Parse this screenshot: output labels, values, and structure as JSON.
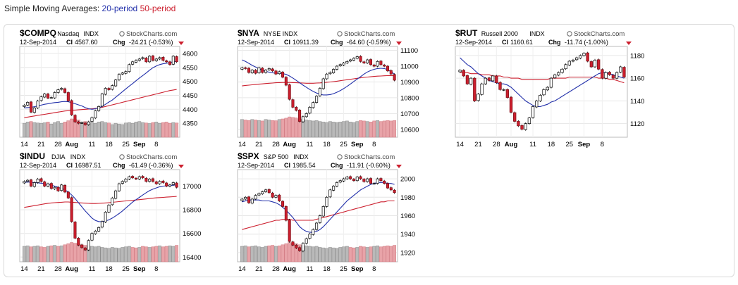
{
  "header": {
    "title": "Simple Moving Averages:",
    "ma20_label": "20-period",
    "ma50_label": "50-period",
    "ma20_color": "#2230aa",
    "ma50_color": "#cc1f2e"
  },
  "chart_data": [
    {
      "type": "candlestick",
      "symbol": "$COMPQ",
      "name": "Nasdaq",
      "exchange": "INDX",
      "watermark": "StockCharts.com",
      "date": "12-Sep-2014",
      "cl_label": "Cl",
      "close": "4567.60",
      "chg_label": "Chg",
      "chg": "-24.21 (-0.53%)",
      "ylim": [
        4300,
        4625
      ],
      "yticks": [
        "4600",
        "4550",
        "4500",
        "4450",
        "4400",
        "4350"
      ],
      "xticks": [
        "14",
        "21",
        "28",
        "Aug",
        "11",
        "18",
        "25",
        "Sep",
        "8"
      ],
      "xtick_pos": [
        0,
        5,
        10,
        14,
        20,
        25,
        30,
        34,
        39
      ],
      "closes": [
        4415,
        4425,
        4390,
        4405,
        4430,
        4445,
        4455,
        4440,
        4442,
        4460,
        4470,
        4475,
        4460,
        4430,
        4380,
        4355,
        4350,
        4352,
        4345,
        4355,
        4370,
        4395,
        4410,
        4455,
        4475,
        4470,
        4485,
        4505,
        4525,
        4530,
        4535,
        4560,
        4570,
        4575,
        4580,
        4585,
        4570,
        4590,
        4575,
        4580,
        4585,
        4575,
        4570,
        4560,
        4590,
        4570
      ],
      "ma20": [
        4405,
        4406,
        4407,
        4409,
        4412,
        4415,
        4418,
        4420,
        4422,
        4424,
        4425,
        4427,
        4428,
        4427,
        4424,
        4420,
        4416,
        4412,
        4406,
        4402,
        4400,
        4402,
        4405,
        4410,
        4418,
        4426,
        4433,
        4443,
        4453,
        4463,
        4473,
        4483,
        4492,
        4502,
        4512,
        4521,
        4530,
        4540,
        4549,
        4555,
        4560,
        4563,
        4565,
        4567,
        4570,
        4571
      ],
      "ma50": [
        4370,
        4372,
        4374,
        4376,
        4378,
        4380,
        4382,
        4384,
        4386,
        4388,
        4390,
        4392,
        4394,
        4395,
        4396,
        4397,
        4398,
        4399,
        4400,
        4401,
        4402,
        4403,
        4405,
        4407,
        4410,
        4413,
        4416,
        4419,
        4422,
        4425,
        4428,
        4431,
        4434,
        4437,
        4440,
        4443,
        4446,
        4449,
        4452,
        4455,
        4458,
        4461,
        4464,
        4467,
        4469,
        4471
      ],
      "volume": [
        0.55,
        0.6,
        0.62,
        0.58,
        0.56,
        0.55,
        0.57,
        0.6,
        0.52,
        0.58,
        0.62,
        0.55,
        0.6,
        0.65,
        0.72,
        0.7,
        0.68,
        0.6,
        0.62,
        0.6,
        0.58,
        0.55,
        0.6,
        0.62,
        0.58,
        0.56,
        0.5,
        0.55,
        0.52,
        0.5,
        0.56,
        0.58,
        0.55,
        0.6,
        0.62,
        0.58,
        0.56,
        0.54,
        0.58,
        0.6,
        0.55,
        0.58,
        0.6,
        0.55,
        0.58,
        0.56
      ]
    },
    {
      "type": "candlestick",
      "symbol": "$NYA",
      "name": "NYSE",
      "exchange": "INDX",
      "watermark": "StockCharts.com",
      "date": "12-Sep-2014",
      "cl_label": "Cl",
      "close": "10911.39",
      "chg_label": "Chg",
      "chg": "-64.60 (-0.59%)",
      "ylim": [
        10550,
        11125
      ],
      "yticks": [
        "11100",
        "11000",
        "10900",
        "10800",
        "10700",
        "10600"
      ],
      "xticks": [
        "14",
        "21",
        "28",
        "Aug",
        "11",
        "18",
        "25",
        "Sep",
        "8"
      ],
      "xtick_pos": [
        0,
        5,
        10,
        14,
        20,
        25,
        30,
        34,
        39
      ],
      "closes": [
        10990,
        10985,
        10960,
        10975,
        10955,
        10990,
        10960,
        10975,
        10985,
        10970,
        10950,
        10965,
        10930,
        10880,
        10790,
        10740,
        10720,
        10650,
        10680,
        10700,
        10740,
        10770,
        10810,
        10860,
        10920,
        10950,
        10960,
        10980,
        11000,
        11010,
        11020,
        11030,
        11040,
        11050,
        11060,
        11030,
        11020,
        11040,
        11010,
        11000,
        11030,
        11010,
        11000,
        10970,
        10950,
        10911
      ],
      "ma20": [
        11040,
        11030,
        11018,
        11005,
        10995,
        10985,
        10975,
        10968,
        10962,
        10958,
        10955,
        10955,
        10953,
        10948,
        10938,
        10925,
        10910,
        10895,
        10880,
        10866,
        10852,
        10840,
        10830,
        10822,
        10818,
        10818,
        10820,
        10826,
        10835,
        10845,
        10858,
        10872,
        10887,
        10903,
        10918,
        10934,
        10950,
        10963,
        10973,
        10980,
        10985,
        10987,
        10985,
        10978,
        10965,
        10950
      ],
      "ma50": [
        10875,
        10878,
        10880,
        10882,
        10884,
        10886,
        10888,
        10890,
        10892,
        10893,
        10895,
        10896,
        10897,
        10897,
        10897,
        10896,
        10895,
        10894,
        10893,
        10892,
        10892,
        10892,
        10893,
        10894,
        10896,
        10898,
        10900,
        10902,
        10905,
        10908,
        10911,
        10914,
        10917,
        10920,
        10923,
        10926,
        10929,
        10931,
        10933,
        10935,
        10937,
        10938,
        10939,
        10940,
        10940,
        10940
      ],
      "volume": [
        0.7,
        0.68,
        0.66,
        0.7,
        0.68,
        0.66,
        0.64,
        0.7,
        0.68,
        0.66,
        0.65,
        0.7,
        0.72,
        0.75,
        0.8,
        0.78,
        0.76,
        0.7,
        0.72,
        0.68,
        0.66,
        0.64,
        0.66,
        0.62,
        0.6,
        0.58,
        0.62,
        0.6,
        0.58,
        0.6,
        0.62,
        0.64,
        0.6,
        0.58,
        0.62,
        0.66,
        0.64,
        0.62,
        0.6,
        0.64,
        0.66,
        0.62,
        0.64,
        0.66,
        0.64,
        0.66
      ]
    },
    {
      "type": "candlestick",
      "symbol": "$RUT",
      "name": "Russell 2000",
      "exchange": "INDX",
      "watermark": "StockCharts.com",
      "date": "12-Sep-2014",
      "cl_label": "Cl",
      "close": "1160.61",
      "chg_label": "Chg",
      "chg": "-11.74 (-1.00%)",
      "ylim": [
        1108,
        1188
      ],
      "yticks": [
        "1180",
        "1160",
        "1140",
        "1120"
      ],
      "xticks": [
        "14",
        "21",
        "28",
        "Aug",
        "11",
        "18",
        "25",
        "Sep",
        "8"
      ],
      "xtick_pos": [
        0,
        5,
        10,
        14,
        20,
        25,
        30,
        34,
        39
      ],
      "closes": [
        1167,
        1162,
        1155,
        1160,
        1140,
        1146,
        1155,
        1160,
        1158,
        1162,
        1156,
        1150,
        1150,
        1143,
        1130,
        1122,
        1118,
        1115,
        1120,
        1125,
        1135,
        1140,
        1145,
        1150,
        1152,
        1160,
        1163,
        1165,
        1168,
        1172,
        1175,
        1176,
        1178,
        1180,
        1182,
        1175,
        1170,
        1176,
        1168,
        1160,
        1165,
        1163,
        1160,
        1165,
        1170,
        1161
      ],
      "ma20": [
        1178,
        1175,
        1172,
        1170,
        1167,
        1164,
        1162,
        1160,
        1158,
        1157,
        1156,
        1155,
        1155,
        1154,
        1152,
        1149,
        1146,
        1143,
        1140,
        1138,
        1136,
        1135,
        1135,
        1136,
        1137,
        1139,
        1140,
        1142,
        1144,
        1146,
        1148,
        1150,
        1152,
        1154,
        1156,
        1158,
        1160,
        1162,
        1164,
        1165,
        1165,
        1164,
        1163,
        1162,
        1161,
        1160
      ],
      "ma50": [
        1165,
        1165,
        1165,
        1164,
        1164,
        1164,
        1163,
        1163,
        1163,
        1162,
        1162,
        1162,
        1161,
        1161,
        1160,
        1160,
        1160,
        1159,
        1159,
        1159,
        1159,
        1159,
        1159,
        1159,
        1159,
        1160,
        1160,
        1160,
        1160,
        1160,
        1161,
        1161,
        1161,
        1161,
        1161,
        1161,
        1161,
        1161,
        1160,
        1160,
        1160,
        1159,
        1159,
        1158,
        1157,
        1156
      ],
      "volume": []
    },
    {
      "type": "candlestick",
      "symbol": "$INDU",
      "name": "DJIA",
      "exchange": "INDX",
      "watermark": "StockCharts.com",
      "date": "12-Sep-2014",
      "cl_label": "Cl",
      "close": "16987.51",
      "chg_label": "Chg",
      "chg": "-61.49 (-0.36%)",
      "ylim": [
        16360,
        17140
      ],
      "yticks": [
        "17000",
        "16800",
        "16600",
        "16400"
      ],
      "xticks": [
        "14",
        "21",
        "28",
        "Aug",
        "11",
        "18",
        "25",
        "Sep",
        "8"
      ],
      "xtick_pos": [
        0,
        5,
        10,
        14,
        20,
        25,
        30,
        34,
        39
      ],
      "closes": [
        17040,
        17050,
        17000,
        17030,
        17060,
        17040,
        17000,
        17020,
        16980,
        16990,
        16960,
        17010,
        16950,
        16900,
        16700,
        16560,
        16500,
        16480,
        16460,
        16540,
        16600,
        16620,
        16650,
        16700,
        16780,
        16840,
        16900,
        16960,
        17020,
        17040,
        17060,
        17080,
        17070,
        17060,
        17080,
        17070,
        17040,
        17060,
        17040,
        17020,
        17040,
        17030,
        17000,
        17010,
        17030,
        16990
      ],
      "ma20": [
        17030,
        17035,
        17032,
        17030,
        17028,
        17025,
        17020,
        17015,
        17008,
        17000,
        16990,
        16980,
        16968,
        16950,
        16925,
        16895,
        16860,
        16825,
        16790,
        16760,
        16730,
        16710,
        16700,
        16700,
        16705,
        16715,
        16730,
        16748,
        16768,
        16790,
        16815,
        16840,
        16865,
        16885,
        16905,
        16925,
        16945,
        16962,
        16975,
        16985,
        16995,
        17000,
        17003,
        17005,
        17008,
        17010
      ],
      "ma50": [
        16820,
        16825,
        16830,
        16835,
        16840,
        16845,
        16850,
        16855,
        16858,
        16860,
        16862,
        16864,
        16866,
        16866,
        16864,
        16862,
        16860,
        16858,
        16856,
        16854,
        16853,
        16853,
        16854,
        16856,
        16858,
        16860,
        16863,
        16866,
        16869,
        16872,
        16875,
        16878,
        16880,
        16883,
        16886,
        16889,
        16892,
        16895,
        16898,
        16901,
        16903,
        16905,
        16907,
        16909,
        16911,
        16913
      ],
      "volume": [
        0.6,
        0.62,
        0.58,
        0.6,
        0.62,
        0.58,
        0.56,
        0.6,
        0.62,
        0.64,
        0.6,
        0.62,
        0.66,
        0.7,
        0.75,
        0.72,
        0.7,
        0.66,
        0.64,
        0.62,
        0.6,
        0.58,
        0.6,
        0.56,
        0.54,
        0.52,
        0.56,
        0.54,
        0.52,
        0.56,
        0.58,
        0.6,
        0.56,
        0.54,
        0.56,
        0.6,
        0.58,
        0.56,
        0.58,
        0.6,
        0.62,
        0.58,
        0.6,
        0.62,
        0.6,
        0.64
      ]
    },
    {
      "type": "candlestick",
      "symbol": "$SPX",
      "name": "S&P 500",
      "exchange": "INDX",
      "watermark": "StockCharts.com",
      "date": "12-Sep-2014",
      "cl_label": "Cl",
      "close": "1985.54",
      "chg_label": "Chg",
      "chg": "-11.91 (-0.60%)",
      "ylim": [
        1910,
        2010
      ],
      "yticks": [
        "2000",
        "1980",
        "1960",
        "1940",
        "1920"
      ],
      "xticks": [
        "14",
        "21",
        "28",
        "Aug",
        "11",
        "18",
        "25",
        "Sep",
        "8"
      ],
      "xtick_pos": [
        0,
        5,
        10,
        14,
        20,
        25,
        30,
        34,
        39
      ],
      "closes": [
        1978,
        1980,
        1974,
        1978,
        1982,
        1984,
        1986,
        1988,
        1985,
        1980,
        1982,
        1976,
        1970,
        1955,
        1932,
        1928,
        1925,
        1922,
        1930,
        1935,
        1940,
        1945,
        1952,
        1960,
        1970,
        1980,
        1988,
        1992,
        1996,
        1998,
        2000,
        2002,
        2000,
        1998,
        2002,
        2000,
        1997,
        2000,
        1995,
        1995,
        2000,
        1998,
        1995,
        1990,
        1988,
        1985
      ],
      "ma20": [
        1975,
        1976,
        1977,
        1977,
        1977,
        1977,
        1976,
        1976,
        1976,
        1975,
        1974,
        1972,
        1969,
        1966,
        1962,
        1958,
        1953,
        1948,
        1945,
        1943,
        1942,
        1942,
        1943,
        1945,
        1948,
        1952,
        1956,
        1960,
        1964,
        1968,
        1972,
        1976,
        1979,
        1982,
        1985,
        1988,
        1990,
        1992,
        1994,
        1995,
        1996,
        1996,
        1996,
        1995,
        1995,
        1994
      ],
      "ma50": [
        1945,
        1946,
        1947,
        1948,
        1949,
        1950,
        1951,
        1952,
        1953,
        1954,
        1955,
        1955,
        1956,
        1956,
        1956,
        1955,
        1955,
        1955,
        1955,
        1955,
        1955,
        1955,
        1956,
        1957,
        1958,
        1959,
        1960,
        1961,
        1962,
        1963,
        1964,
        1965,
        1966,
        1967,
        1968,
        1969,
        1970,
        1971,
        1972,
        1973,
        1974,
        1975,
        1975,
        1976,
        1976,
        1976
      ],
      "volume": [
        0.6,
        0.62,
        0.58,
        0.6,
        0.62,
        0.58,
        0.56,
        0.6,
        0.62,
        0.64,
        0.6,
        0.62,
        0.66,
        0.7,
        0.75,
        0.72,
        0.7,
        0.66,
        0.64,
        0.62,
        0.6,
        0.58,
        0.6,
        0.56,
        0.54,
        0.52,
        0.56,
        0.54,
        0.52,
        0.56,
        0.58,
        0.6,
        0.56,
        0.54,
        0.56,
        0.6,
        0.58,
        0.56,
        0.58,
        0.6,
        0.62,
        0.58,
        0.6,
        0.62,
        0.6,
        0.64
      ]
    }
  ]
}
